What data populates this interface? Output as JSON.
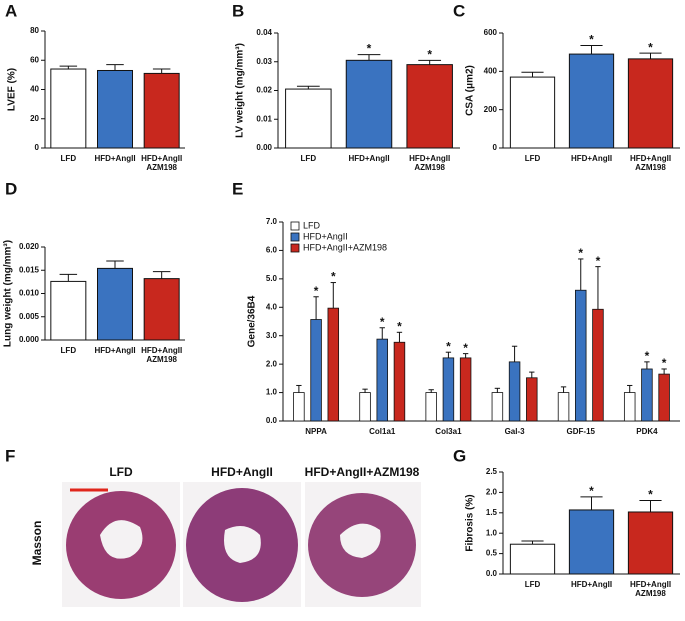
{
  "chart_data": [
    {
      "type": "bar",
      "panel": "A",
      "y_label": "LVEF (%)",
      "categories": [
        "LFD",
        "HFD+AngII",
        [
          "HFD+AngII",
          "AZM198"
        ]
      ],
      "values": [
        54,
        53,
        51
      ],
      "errors": [
        2,
        4,
        3
      ],
      "colors": [
        "#ffffff",
        "#3a73c0",
        "#c8281e"
      ],
      "significance": [
        null,
        null,
        null
      ],
      "ylim": [
        0,
        80
      ],
      "yticks": [
        0,
        20,
        40,
        60,
        80
      ]
    },
    {
      "type": "bar",
      "panel": "B",
      "y_label": "LV weight (mg/mm³)",
      "categories": [
        "LFD",
        "HFD+AngII",
        [
          "HFD+AngII",
          "AZM198"
        ]
      ],
      "values": [
        0.0205,
        0.0305,
        0.029
      ],
      "errors": [
        0.001,
        0.002,
        0.0015
      ],
      "colors": [
        "#ffffff",
        "#3a73c0",
        "#c8281e"
      ],
      "significance": [
        null,
        "*",
        "*"
      ],
      "ylim": [
        0,
        0.04
      ],
      "yticks": [
        {
          "value": 0,
          "label": "0.00"
        },
        {
          "value": 0.01,
          "label": "0.01"
        },
        {
          "value": 0.02,
          "label": "0.02"
        },
        {
          "value": 0.03,
          "label": "0.03"
        },
        {
          "value": 0.04,
          "label": "0.04"
        }
      ]
    },
    {
      "type": "bar",
      "panel": "C",
      "y_label": "CSA (μm2)",
      "categories": [
        "LFD",
        "HFD+AngII",
        [
          "HFD+AngII",
          "AZM198"
        ]
      ],
      "values": [
        370,
        490,
        465
      ],
      "errors": [
        25,
        45,
        30
      ],
      "colors": [
        "#ffffff",
        "#3a73c0",
        "#c8281e"
      ],
      "significance": [
        null,
        "*",
        "*"
      ],
      "ylim": [
        0,
        600
      ],
      "yticks": [
        0,
        200,
        400,
        600
      ]
    },
    {
      "type": "bar",
      "panel": "D",
      "y_label": "Lung weight (mg/mm³)",
      "categories": [
        "LFD",
        "HFD+AngII",
        [
          "HFD+AngII",
          "AZM198"
        ]
      ],
      "values": [
        0.0126,
        0.0154,
        0.0132
      ],
      "errors": [
        0.0015,
        0.0016,
        0.0015
      ],
      "colors": [
        "#ffffff",
        "#3a73c0",
        "#c8281e"
      ],
      "significance": [
        null,
        null,
        null
      ],
      "ylim": [
        0,
        0.02
      ],
      "yticks": [
        {
          "value": 0,
          "label": "0.000"
        },
        {
          "value": 0.005,
          "label": "0.005"
        },
        {
          "value": 0.01,
          "label": "0.010"
        },
        {
          "value": 0.015,
          "label": "0.015"
        },
        {
          "value": 0.02,
          "label": "0.020"
        }
      ]
    },
    {
      "type": "bar",
      "panel": "E",
      "y_label": "Gene/36B4",
      "categories": [
        "NPPA",
        "Col1a1",
        "Col3a1",
        "Gal-3",
        "GDF-15",
        "PDK4"
      ],
      "series": [
        {
          "name": "LFD",
          "color": "#ffffff",
          "values": [
            1.0,
            1.0,
            1.0,
            1.0,
            1.0,
            1.0
          ],
          "errors": [
            0.25,
            0.12,
            0.1,
            0.15,
            0.2,
            0.25
          ],
          "significance": [
            null,
            null,
            null,
            null,
            null,
            null
          ]
        },
        {
          "name": "HFD+AngII",
          "color": "#3a73c0",
          "values": [
            3.57,
            2.88,
            2.22,
            2.08,
            4.6,
            1.83
          ],
          "errors": [
            0.8,
            0.4,
            0.2,
            0.55,
            1.1,
            0.25
          ],
          "significance": [
            "*",
            "*",
            "*",
            null,
            "*",
            "*"
          ]
        },
        {
          "name": "HFD+AngII+AZM198",
          "color": "#c8281e",
          "values": [
            3.97,
            2.77,
            2.22,
            1.52,
            3.93,
            1.65
          ],
          "errors": [
            0.9,
            0.35,
            0.15,
            0.2,
            1.5,
            0.18
          ],
          "significance": [
            "*",
            "*",
            "*",
            null,
            "*",
            "*"
          ]
        }
      ],
      "ylim": [
        0,
        7
      ],
      "yticks": [
        {
          "value": 0,
          "label": "0.0"
        },
        {
          "value": 1,
          "label": "1.0"
        },
        {
          "value": 2,
          "label": "2.0"
        },
        {
          "value": 3,
          "label": "3.0"
        },
        {
          "value": 4,
          "label": "4.0"
        },
        {
          "value": 5,
          "label": "5.0"
        },
        {
          "value": 6,
          "label": "6.0"
        },
        {
          "value": 7,
          "label": "7.0"
        }
      ]
    },
    {
      "type": "bar",
      "panel": "G",
      "y_label": "Fibrosis (%)",
      "categories": [
        "LFD",
        "HFD+AngII",
        [
          "HFD+AngII",
          "AZM198"
        ]
      ],
      "values": [
        0.73,
        1.57,
        1.52
      ],
      "errors": [
        0.08,
        0.32,
        0.28
      ],
      "colors": [
        "#ffffff",
        "#3a73c0",
        "#c8281e"
      ],
      "significance": [
        null,
        "*",
        "*"
      ],
      "ylim": [
        0,
        2.5
      ],
      "yticks": [
        {
          "value": 0,
          "label": "0.0"
        },
        {
          "value": 0.5,
          "label": "0.5"
        },
        {
          "value": 1,
          "label": "1.0"
        },
        {
          "value": 1.5,
          "label": "1.5"
        },
        {
          "value": 2,
          "label": "2.0"
        },
        {
          "value": 2.5,
          "label": "2.5"
        }
      ]
    }
  ],
  "histology": {
    "panel": "F",
    "row_label": "Masson",
    "columns": [
      "LFD",
      "HFD+AngII",
      "HFD+AngII+AZM198"
    ]
  }
}
